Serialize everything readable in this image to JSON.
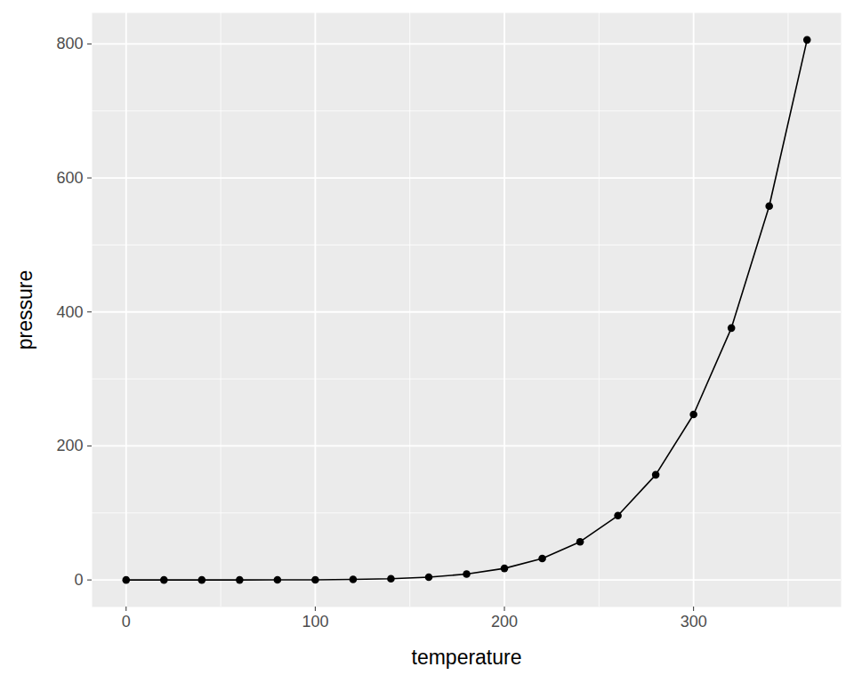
{
  "chart_data": {
    "type": "line",
    "marker": "circle",
    "color": "#000000",
    "grid": true,
    "xlabel": "temperature",
    "ylabel": "pressure",
    "x": [
      0,
      20,
      40,
      60,
      80,
      100,
      120,
      140,
      160,
      180,
      200,
      220,
      240,
      260,
      280,
      300,
      320,
      340,
      360
    ],
    "values": [
      0.0002,
      0.0012,
      0.006,
      0.03,
      0.09,
      0.27,
      0.75,
      1.85,
      4.2,
      8.8,
      17.3,
      32.1,
      57,
      96,
      157,
      247,
      376,
      558,
      806
    ],
    "xlim": [
      -18,
      378
    ],
    "ylim": [
      -40.3,
      846.3
    ],
    "xticks": [
      0,
      100,
      200,
      300
    ],
    "yticks": [
      0,
      200,
      400,
      600,
      800
    ]
  }
}
